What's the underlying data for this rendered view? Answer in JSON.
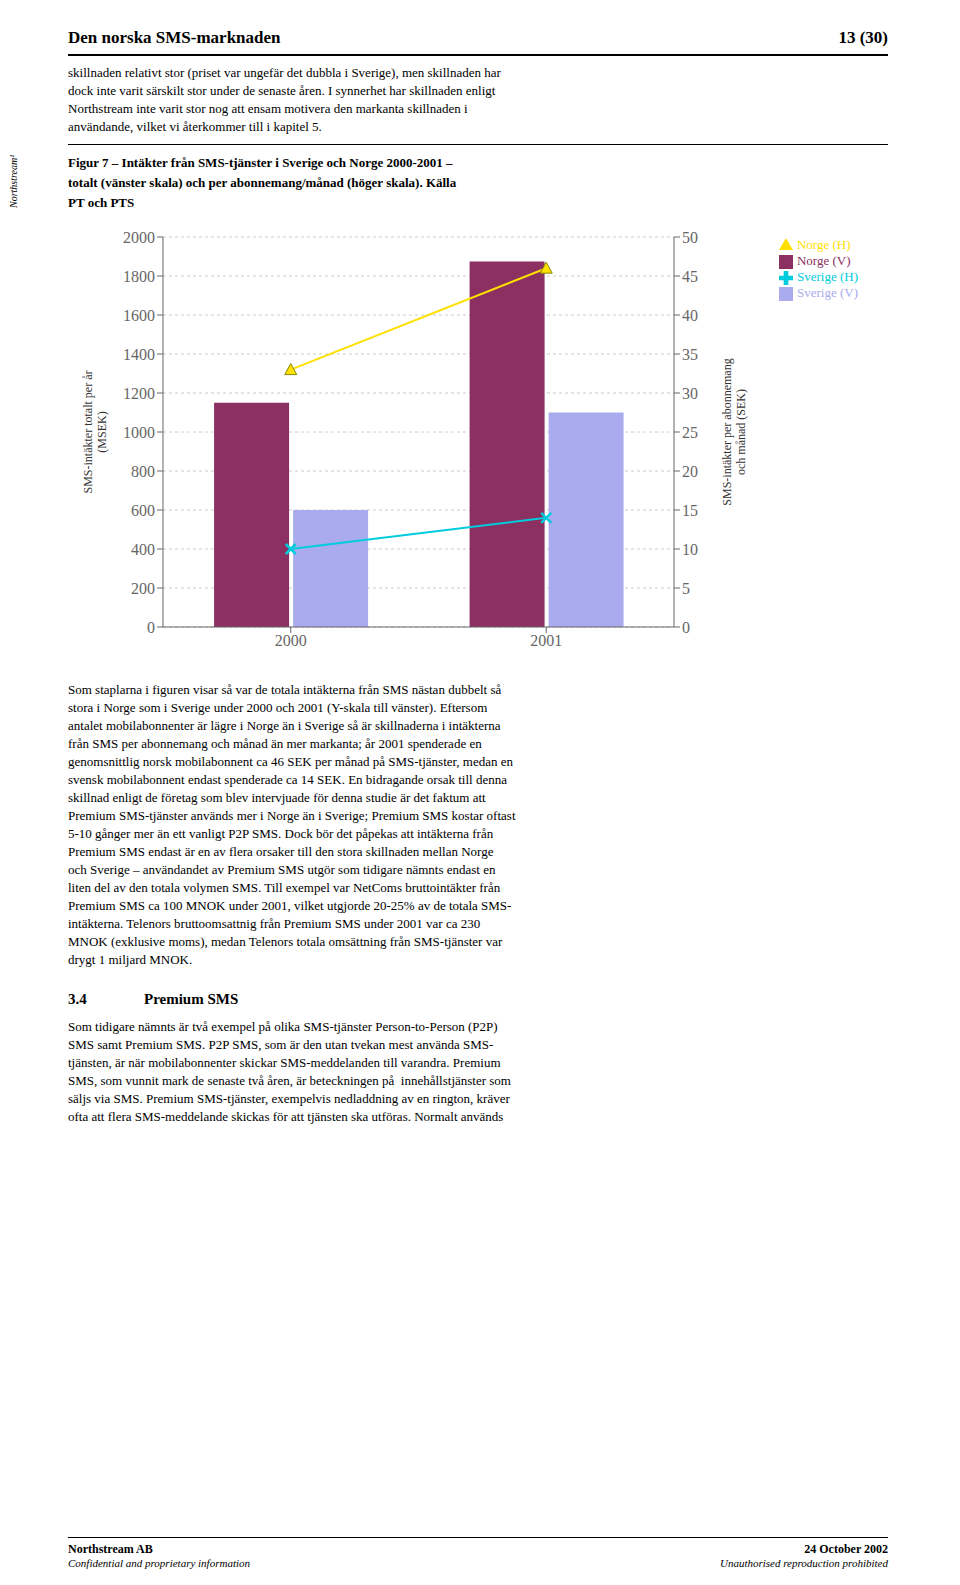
{
  "page_title": "Den norska SMS-marknaden",
  "page_number": "13 (30)",
  "sidebar_text": "Northstream¹",
  "intro_text_lines": [
    "skillnaden relativt stor (priset var ungefär det dubbla i Sverige), men skillnaden har",
    "dock inte varit särskilt stor under de senaste åren. I synnerhet har skillnaden enligt",
    "Northstream inte varit stor nog att ensam motivera den markanta skillnaden i",
    "användande, vilket vi återkommer till i kapitel 5."
  ],
  "caption_lines": [
    "Figur 7 – Intäkter från SMS-tjänster i Sverige och Norge 2000-2001 –",
    "totalt (vänster skala) och per abonnemang/månad (höger skala). Källa",
    "PT och PTS"
  ],
  "body_text_lines": [
    "Som staplarna i figuren visar så var de totala intäkterna från SMS nästan dubbelt så",
    "stora i Norge som i Sverige under 2000 och 2001 (Y-skala till vänster). Eftersom",
    "antalet mobilabonnenter är lägre i Norge än i Sverige så är skillnaderna i intäkterna",
    "från SMS per abonnemang och månad än mer markanta; år 2001 spenderade en",
    "genomsnittlig norsk mobilabonnent ca 46 SEK per månad på SMS-tjänster, medan en",
    "svensk mobilabonnent endast spenderade ca 14 SEK. En bidragande orsak till denna",
    "skillnad enligt de företag som blev intervjuade för denna studie är det faktum att",
    "Premium SMS-tjänster används mer i Norge än i Sverige; Premium SMS kostar oftast",
    "5-10 gånger mer än ett vanligt P2P SMS. Dock bör det påpekas att intäkterna från",
    "Premium SMS endast är en av flera orsaker till den stora skillnaden mellan Norge",
    "och Sverige – användandet av Premium SMS utgör som tidigare nämnts endast en",
    "liten del av den totala volymen SMS. Till exempel var NetComs bruttointäkter från",
    "Premium SMS ca 100 MNOK under 2001, vilket utgjorde 20-25% av de totala SMS-",
    "intäkterna. Telenors bruttoomsattnig från Premium SMS under 2001 var ca 230",
    "MNOK (exklusive moms), medan Telenors totala omsättning från SMS-tjänster var",
    "drygt 1 miljard MNOK."
  ],
  "section_number": "3.4",
  "section_title": "Premium SMS",
  "footer_text_lines": [
    "Som tidigare nämnts är två exempel på olika SMS-tjänster Person-to-Person (P2P)",
    "SMS samt Premium SMS. P2P SMS, som är den utan tvekan mest använda SMS-",
    "tjänsten, är när mobilabonnenter skickar SMS-meddelanden till varandra. Premium",
    "SMS, som vunnit mark de senaste två åren, är beteckningen på  innehållstjänster som",
    "säljs via SMS. Premium SMS-tjänster, exempelvis nedladdning av en rington, kräver",
    "ofta att flera SMS-meddelande skickas för att tjänsten ska utföras. Normalt används"
  ],
  "bottom_left": [
    "Northstream AB",
    "Confidential and proprietary information"
  ],
  "bottom_right": [
    "24 October 2002",
    "Unauthorised reproduction prohibited"
  ],
  "chart_data": {
    "type": "bar",
    "categories": [
      "2000",
      "2001"
    ],
    "series": [
      {
        "name": "Norge (V)",
        "color": "#8B3060",
        "values": [
          1150,
          1875
        ]
      },
      {
        "name": "Sverige (V)",
        "color": "#AAAAEE",
        "values": [
          600,
          1100
        ]
      },
      {
        "name": "Norge (H)",
        "type": "line",
        "axis": "y2",
        "color": "#FFE000",
        "marker": "triangle",
        "values": [
          33,
          46
        ]
      },
      {
        "name": "Sverige (H)",
        "type": "line",
        "axis": "y2",
        "color": "#00CCDD",
        "marker": "x",
        "values": [
          10,
          14
        ]
      }
    ],
    "ylabel": "SMS-intäkter totalt per år\n(MSEK)",
    "y2label": "SMS-intäkter per abonnemang\noch månad (SEK)",
    "ylim": [
      0,
      2000
    ],
    "yticks": [
      0,
      200,
      400,
      600,
      800,
      1000,
      1200,
      1400,
      1600,
      1800,
      2000
    ],
    "y2lim": [
      0,
      50
    ],
    "y2ticks": [
      0,
      5,
      10,
      15,
      20,
      25,
      30,
      35,
      40,
      45,
      50
    ],
    "grid": true,
    "legend": "right"
  }
}
